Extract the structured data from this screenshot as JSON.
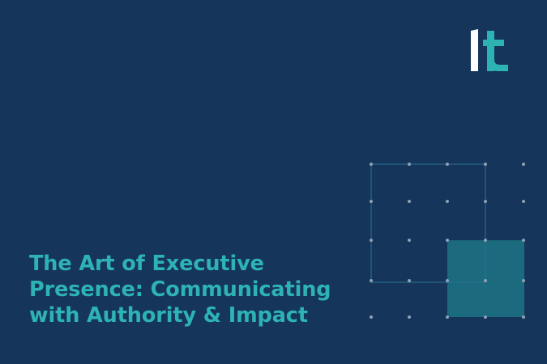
{
  "logo": {
    "icon": "it-logo-icon",
    "colors": {
      "i": "#ffffff",
      "t": "#2eb3b3"
    }
  },
  "title": {
    "lines": [
      "The Art of Executive",
      "Presence: Communicating",
      "with Authority & Impact"
    ],
    "color": "#2eb3b3"
  },
  "theme": {
    "background": "#16355b",
    "accent": "#2eb3b3",
    "accent_block": "#1b6a7e",
    "grid_line": "#2a7590",
    "dot": "#8fa1b3"
  },
  "graphic": {
    "icon": "dot-grid-pattern",
    "columns": 5,
    "rows": 5
  }
}
